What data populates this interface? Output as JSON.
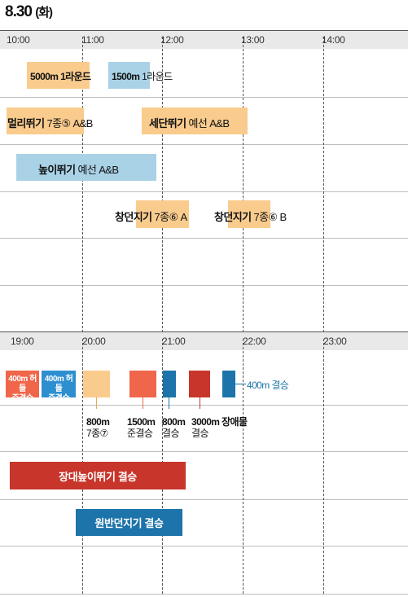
{
  "title": {
    "date": "8.30",
    "weekday": "(화)"
  },
  "morning": {
    "times": [
      "10:00",
      "11:00",
      "12:00",
      "13:00",
      "14:00"
    ],
    "events": {
      "e5000": "5000m 1라운드",
      "e1500_name": "1500m",
      "e1500_round": "1라운드",
      "longjump_name": "멀리뛰기",
      "longjump_detail": "7종⑤ A&B",
      "triple_name": "세단뛰기",
      "triple_detail": "예선 A&B",
      "high_name": "높이뛰기",
      "high_detail": "예선 A&B",
      "jav_a_name": "창던지기",
      "jav_a_detail": "7종⑥ A",
      "jav_b_name": "창던지기",
      "jav_b_detail": "7종⑥ B"
    }
  },
  "evening": {
    "times": [
      "19:00",
      "20:00",
      "21:00",
      "22:00",
      "23:00"
    ],
    "box400h_w": {
      "line1": "400m 허들",
      "line2": "준결승"
    },
    "box400h_m": {
      "line1": "400m 허들",
      "line2": "준결승"
    },
    "e400_final": "400m 결승",
    "e800_h7": {
      "line1": "800m",
      "line2": "7종⑦"
    },
    "e1500_semi": {
      "line1": "1500m",
      "line2": "준결승"
    },
    "e800_final": {
      "line1": "800m",
      "line2": "결승"
    },
    "e3000_sc": {
      "line1": "3000m 장애물",
      "line2": "결승"
    },
    "polevault": "장대높이뛰기 결승",
    "discus": "원반던지기 결승"
  },
  "colors": {
    "orange_light": "#f9cc8e",
    "blue_light": "#a9d2e6",
    "red_orange": "#f0664a",
    "blue_mid": "#2e8fd0",
    "red_dark": "#c8352b",
    "blue_dark": "#1c74aa",
    "header_bg": "#e9e9e9"
  }
}
